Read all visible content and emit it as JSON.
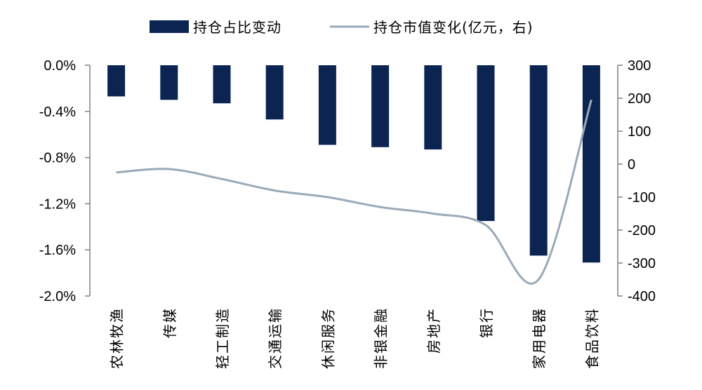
{
  "chart_data": {
    "type": "bar",
    "categories": [
      "农林牧渔",
      "传媒",
      "轻工制造",
      "交通运输",
      "休闲服务",
      "非银金融",
      "房地产",
      "银行",
      "家用电器",
      "食品饮料"
    ],
    "series": [
      {
        "name": "持仓占比变动",
        "type": "bar",
        "axis": "left",
        "color": "#0b2452",
        "values": [
          -0.27,
          -0.3,
          -0.33,
          -0.47,
          -0.69,
          -0.71,
          -0.73,
          -1.35,
          -1.65,
          -1.71
        ]
      },
      {
        "name": "持仓市值变化(亿元，右)",
        "type": "line",
        "axis": "right",
        "color": "#9aaab8",
        "values": [
          -25,
          -15,
          -45,
          -80,
          -100,
          -130,
          -150,
          -185,
          -350,
          195
        ]
      }
    ],
    "y_left": {
      "min": -2.0,
      "max": 0.0,
      "ticks": [
        0.0,
        -0.4,
        -0.8,
        -1.2,
        -1.6,
        -2.0
      ],
      "tick_labels": [
        "0.0%",
        "-0.4%",
        "-0.8%",
        "-1.2%",
        "-1.6%",
        "-2.0%"
      ]
    },
    "y_right": {
      "min": -400,
      "max": 300,
      "ticks": [
        300,
        200,
        100,
        0,
        -100,
        -200,
        -300,
        -400
      ],
      "tick_labels": [
        "300",
        "200",
        "100",
        "0",
        "-100",
        "-200",
        "-300",
        "-400"
      ]
    },
    "legend_position": "top-center",
    "grid": false
  }
}
